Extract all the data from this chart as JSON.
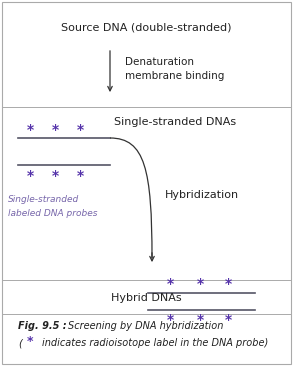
{
  "bg_color": "#f0f0ec",
  "border_color": "#aaaaaa",
  "line_color": "#555566",
  "star_color": "#5533aa",
  "arrow_color": "#333333",
  "text_color": "#222222",
  "probe_text_color": "#7766aa",
  "title_text": "Source DNA (double-stranded)",
  "denature_label1": "Denaturation",
  "denature_label2": "membrane binding",
  "ssdna_label": "Single-stranded DNAs",
  "hybrid_label": "Hybridization",
  "probe_label1": "Single-stranded",
  "probe_label2": "labeled DNA probes",
  "hybrid_dna_label": "Hybrid DNAs",
  "fig_caption_bold": "Fig. 9.5 : ",
  "fig_caption_italic": "Screening by DNA hybridization",
  "fig_caption2b": "indicates radioisotope label in the DNA probe)"
}
